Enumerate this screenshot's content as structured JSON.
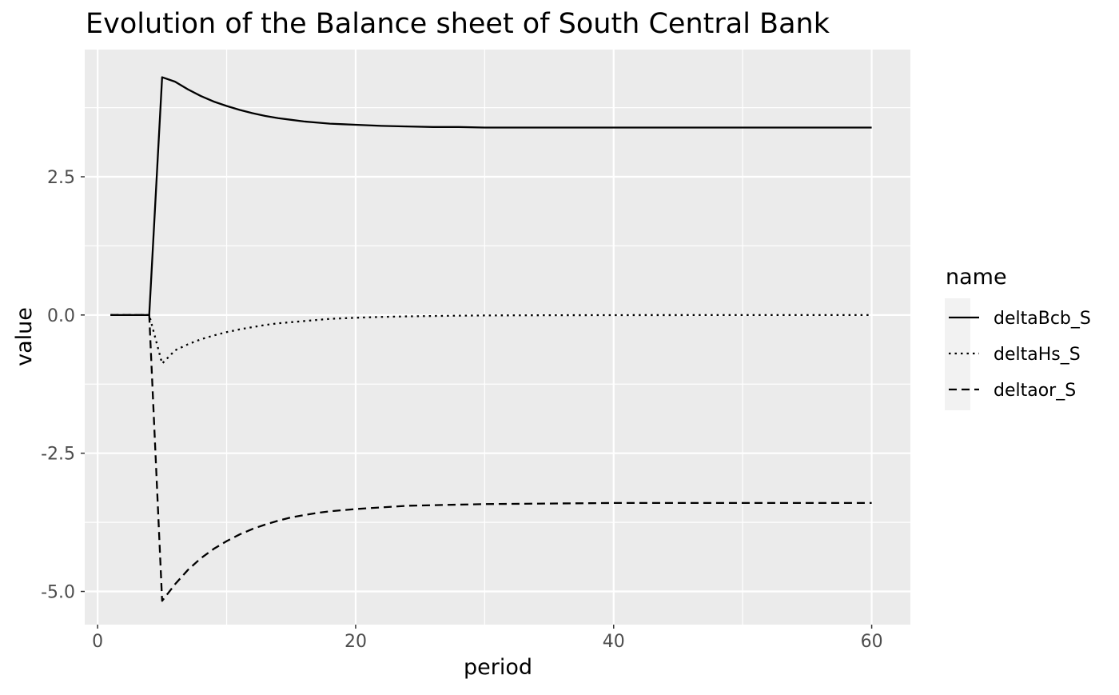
{
  "chart_data": {
    "type": "line",
    "title": "Evolution of the Balance sheet of South Central Bank",
    "xlabel": "period",
    "ylabel": "value",
    "xlim": [
      -1,
      63
    ],
    "ylim": [
      -5.6,
      4.8
    ],
    "xticks": [
      0,
      20,
      40,
      60
    ],
    "xtick_labels": [
      "0",
      "20",
      "40",
      "60"
    ],
    "yticks": [
      -5.0,
      -2.5,
      0.0,
      2.5
    ],
    "ytick_labels": [
      "-5.0",
      "-2.5",
      "0.0",
      "2.5"
    ],
    "grid": true,
    "legend": {
      "title": "name",
      "position": "right"
    },
    "series": [
      {
        "name": "deltaBcb_S",
        "line_style": "solid",
        "x": [
          1,
          2,
          3,
          4,
          5,
          6,
          7,
          8,
          9,
          10,
          11,
          12,
          13,
          14,
          15,
          16,
          17,
          18,
          19,
          20,
          22,
          24,
          26,
          28,
          30,
          35,
          40,
          45,
          50,
          55,
          60
        ],
        "values": [
          0.0,
          0.0,
          0.0,
          0.0,
          4.3,
          4.22,
          4.08,
          3.96,
          3.86,
          3.78,
          3.71,
          3.65,
          3.6,
          3.56,
          3.53,
          3.5,
          3.48,
          3.46,
          3.45,
          3.44,
          3.42,
          3.41,
          3.4,
          3.4,
          3.39,
          3.39,
          3.39,
          3.39,
          3.39,
          3.39,
          3.39
        ]
      },
      {
        "name": "deltaHs_S",
        "line_style": "dotted",
        "x": [
          1,
          2,
          3,
          4,
          5,
          6,
          7,
          8,
          9,
          10,
          11,
          12,
          13,
          14,
          15,
          16,
          17,
          18,
          19,
          20,
          22,
          24,
          26,
          28,
          30,
          35,
          40,
          45,
          50,
          55,
          60
        ],
        "values": [
          0.0,
          0.0,
          0.0,
          0.0,
          -0.88,
          -0.64,
          -0.53,
          -0.44,
          -0.37,
          -0.31,
          -0.26,
          -0.22,
          -0.18,
          -0.15,
          -0.13,
          -0.11,
          -0.09,
          -0.07,
          -0.06,
          -0.05,
          -0.035,
          -0.025,
          -0.018,
          -0.012,
          -0.008,
          -0.004,
          -0.002,
          -0.001,
          0.0,
          0.0,
          0.0
        ]
      },
      {
        "name": "deltaor_S",
        "line_style": "dashed",
        "x": [
          1,
          2,
          3,
          4,
          5,
          6,
          7,
          8,
          9,
          10,
          11,
          12,
          13,
          14,
          15,
          16,
          17,
          18,
          19,
          20,
          22,
          24,
          26,
          28,
          30,
          35,
          40,
          45,
          50,
          55,
          60
        ],
        "values": [
          0.0,
          0.0,
          0.0,
          0.0,
          -5.17,
          -4.87,
          -4.61,
          -4.4,
          -4.23,
          -4.09,
          -3.97,
          -3.87,
          -3.79,
          -3.72,
          -3.66,
          -3.62,
          -3.58,
          -3.55,
          -3.53,
          -3.51,
          -3.48,
          -3.45,
          -3.44,
          -3.43,
          -3.42,
          -3.41,
          -3.4,
          -3.4,
          -3.4,
          -3.4,
          -3.4
        ]
      }
    ]
  }
}
